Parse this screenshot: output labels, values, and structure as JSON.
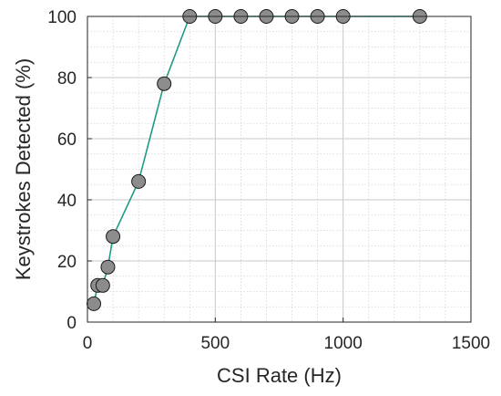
{
  "chart_data": {
    "type": "line",
    "title": "",
    "xlabel": "CSI Rate (Hz)",
    "ylabel": "Keystrokes Detected (%)",
    "xlim": [
      0,
      1500
    ],
    "ylim": [
      0,
      100
    ],
    "xticks": [
      0,
      500,
      1000,
      1500
    ],
    "yticks": [
      0,
      20,
      40,
      60,
      80,
      100
    ],
    "xtick_labels": [
      "0",
      "500",
      "1000",
      "1500"
    ],
    "ytick_labels": [
      "0",
      "20",
      "40",
      "60",
      "80",
      "100"
    ],
    "grid": "major-and-minor",
    "series": [
      {
        "x": [
          25,
          40,
          60,
          80,
          100,
          200,
          300,
          400,
          500,
          600,
          700,
          800,
          900,
          1000,
          1300
        ],
        "y": [
          6,
          12,
          12,
          18,
          28,
          46,
          78,
          100,
          100,
          100,
          100,
          100,
          100,
          100,
          100
        ],
        "line_color": "#1e9a84",
        "marker_fill": "#8c8c8c",
        "marker_edge": "#1a1a1a"
      }
    ]
  }
}
